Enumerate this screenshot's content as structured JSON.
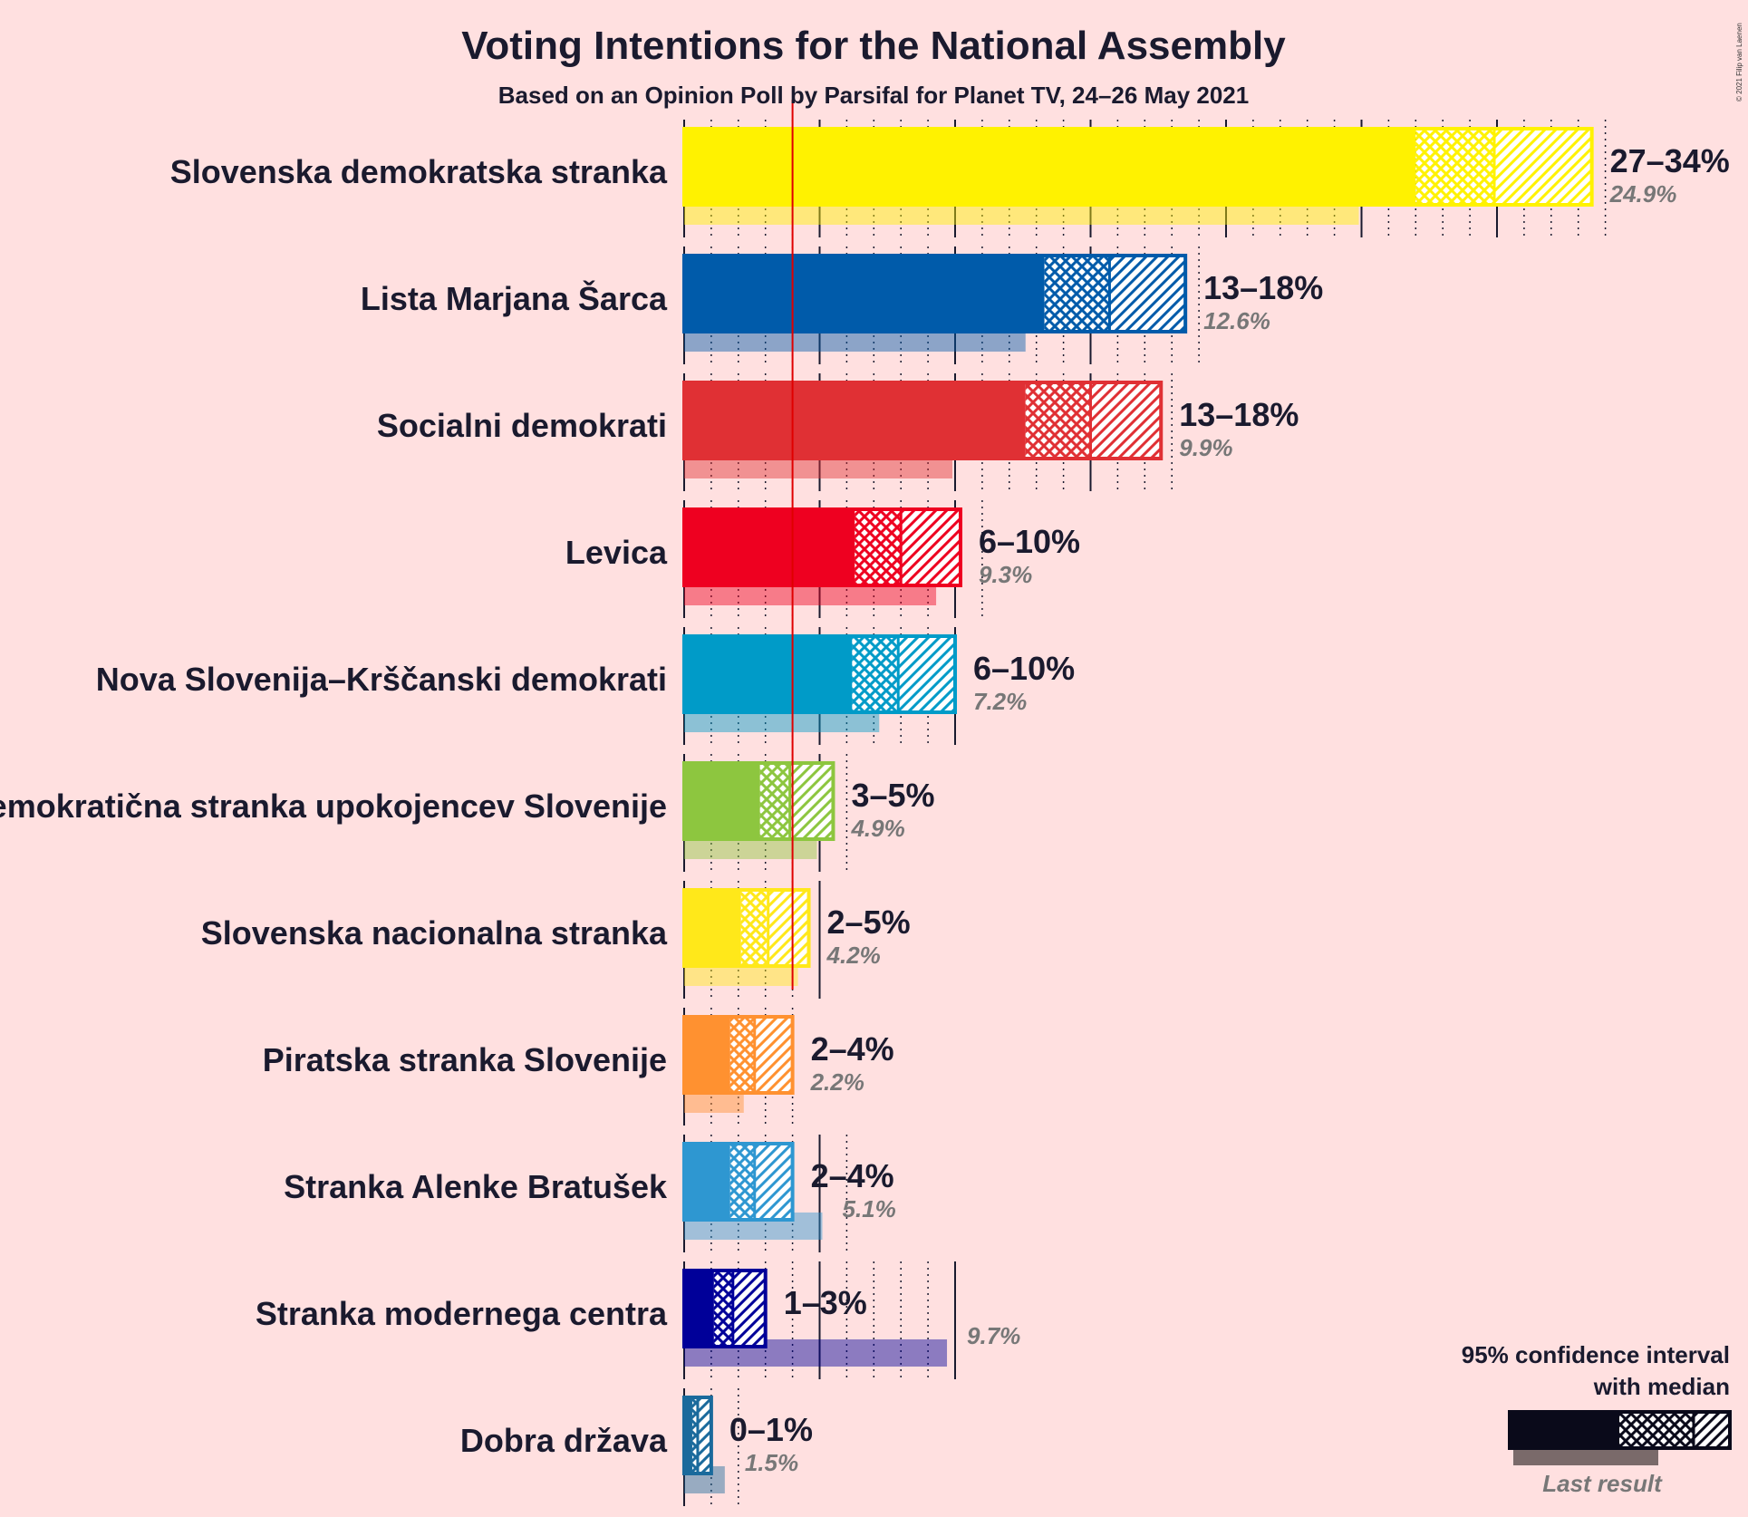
{
  "title": "Voting Intentions for the National Assembly",
  "subtitle": "Based on an Opinion Poll by Parsifal for Planet TV, 24–26 May 2021",
  "copyright": "© 2021 Filip van Laenen",
  "legend": {
    "line1": "95% confidence interval",
    "line2": "with median",
    "last_result": "Last result"
  },
  "chart_data": {
    "type": "bar",
    "orientation": "horizontal",
    "x_unit": "%",
    "xlim": [
      0,
      34
    ],
    "threshold": 4,
    "grid": "vertical lines every 1% (solid every 5%)",
    "series": [
      {
        "name": "Slovenska demokratska stranka",
        "ci_low": 27,
        "median": 29.9,
        "ci_high": 33.5,
        "range_label": "27–34%",
        "last_result": 24.9,
        "last_label": "24.9%",
        "color": "#FFF200"
      },
      {
        "name": "Lista Marjana Šarca",
        "ci_low": 13.3,
        "median": 15.7,
        "ci_high": 18.5,
        "range_label": "13–18%",
        "last_result": 12.6,
        "last_label": "12.6%",
        "color": "#005BAA"
      },
      {
        "name": "Socialni demokrati",
        "ci_low": 12.6,
        "median": 15,
        "ci_high": 17.6,
        "range_label": "13–18%",
        "last_result": 9.9,
        "last_label": "9.9%",
        "color": "#E03034"
      },
      {
        "name": "Levica",
        "ci_low": 6.3,
        "median": 8,
        "ci_high": 10.2,
        "range_label": "6–10%",
        "last_result": 9.3,
        "last_label": "9.3%",
        "color": "#EE0020"
      },
      {
        "name": "Nova Slovenija–Krščanski demokrati",
        "ci_low": 6.2,
        "median": 7.9,
        "ci_high": 10,
        "range_label": "6–10%",
        "last_result": 7.2,
        "last_label": "7.2%",
        "color": "#009BC8"
      },
      {
        "name": "Demokratična stranka upokojencev Slovenije",
        "ci_low": 2.8,
        "median": 3.9,
        "ci_high": 5.5,
        "range_label": "3–5%",
        "last_result": 4.9,
        "last_label": "4.9%",
        "color": "#8DC63F"
      },
      {
        "name": "Slovenska nacionalna stranka",
        "ci_low": 2.1,
        "median": 3.1,
        "ci_high": 4.6,
        "range_label": "2–5%",
        "last_result": 4.2,
        "last_label": "4.2%",
        "color": "#FFE81A"
      },
      {
        "name": "Piratska stranka Slovenije",
        "ci_low": 1.7,
        "median": 2.6,
        "ci_high": 4,
        "range_label": "2–4%",
        "last_result": 2.2,
        "last_label": "2.2%",
        "color": "#FF9130"
      },
      {
        "name": "Stranka Alenke Bratušek",
        "ci_low": 1.7,
        "median": 2.6,
        "ci_high": 4,
        "range_label": "2–4%",
        "last_result": 5.1,
        "last_label": "5.1%",
        "color": "#2E97D1"
      },
      {
        "name": "Stranka modernega centra",
        "ci_low": 1.1,
        "median": 1.8,
        "ci_high": 3,
        "range_label": "1–3%",
        "last_result": 9.7,
        "last_label": "9.7%",
        "color": "#000099"
      },
      {
        "name": "Dobra država",
        "ci_low": 0.3,
        "median": 0.5,
        "ci_high": 1,
        "range_label": "0–1%",
        "last_result": 1.5,
        "last_label": "1.5%",
        "color": "#1A6A9C"
      }
    ]
  }
}
